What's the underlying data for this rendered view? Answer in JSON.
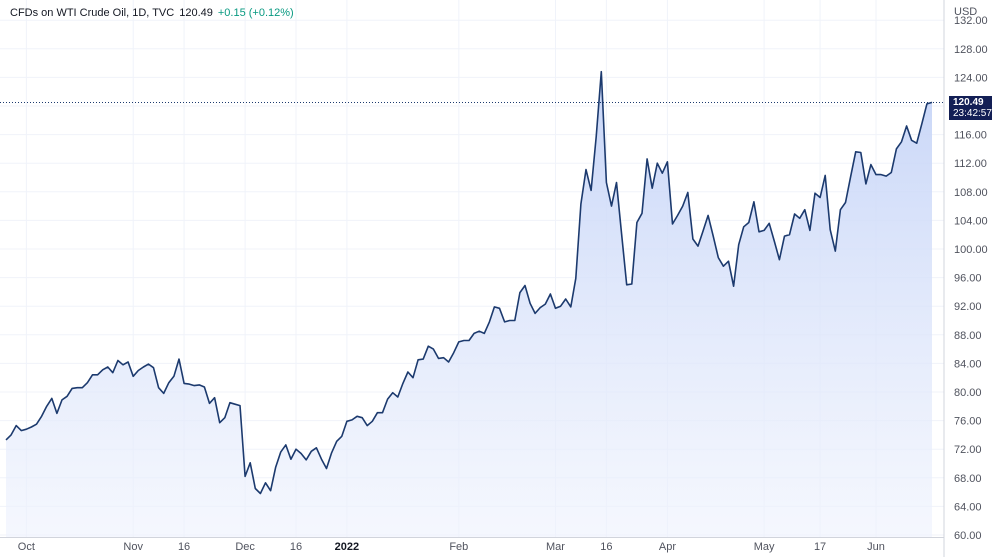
{
  "legend": {
    "symbol": "CFDs on WTI Crude Oil, 1D, TVC",
    "last": "120.49",
    "change": "+0.15 (+0.12%)"
  },
  "price_tag": {
    "price": "120.49",
    "countdown": "23:42:57"
  },
  "colors": {
    "line": "#1c3a6e",
    "fill_top": "#c4d3f7",
    "fill_bottom": "#eef2fd",
    "tag": "#131f55",
    "change": "#089981"
  },
  "chart_data": {
    "type": "area",
    "currency": "USD",
    "ylim": [
      60,
      133
    ],
    "yticks": [
      "60.00",
      "64.00",
      "68.00",
      "72.00",
      "76.00",
      "80.00",
      "84.00",
      "88.00",
      "92.00",
      "96.00",
      "100.00",
      "104.00",
      "108.00",
      "112.00",
      "116.00",
      "120.00",
      "124.00",
      "128.00",
      "132.00"
    ],
    "xticks": [
      {
        "label": "Oct",
        "index": 4,
        "bold": false
      },
      {
        "label": "Nov",
        "index": 25,
        "bold": false
      },
      {
        "label": "16",
        "index": 35,
        "bold": false
      },
      {
        "label": "Dec",
        "index": 47,
        "bold": false
      },
      {
        "label": "16",
        "index": 57,
        "bold": false
      },
      {
        "label": "2022",
        "index": 67,
        "bold": true
      },
      {
        "label": "Feb",
        "index": 89,
        "bold": false
      },
      {
        "label": "Mar",
        "index": 108,
        "bold": false
      },
      {
        "label": "16",
        "index": 118,
        "bold": false
      },
      {
        "label": "Apr",
        "index": 130,
        "bold": false
      },
      {
        "label": "May",
        "index": 149,
        "bold": false
      },
      {
        "label": "17",
        "index": 160,
        "bold": false
      },
      {
        "label": "Jun",
        "index": 171,
        "bold": false
      }
    ],
    "grid": true,
    "last_price_line": 120.49,
    "values": [
      73.3,
      74.0,
      75.3,
      74.6,
      74.8,
      75.1,
      75.5,
      76.6,
      78.0,
      79.1,
      77.0,
      78.9,
      79.4,
      80.5,
      80.6,
      80.6,
      81.3,
      82.4,
      82.4,
      83.1,
      83.5,
      82.7,
      84.4,
      83.8,
      84.2,
      82.2,
      83.0,
      83.5,
      83.9,
      83.4,
      80.6,
      79.8,
      81.3,
      82.2,
      84.6,
      81.2,
      81.1,
      80.9,
      81.0,
      80.7,
      78.4,
      79.2,
      75.7,
      76.4,
      78.5,
      78.3,
      78.1,
      68.2,
      70.1,
      66.5,
      65.8,
      67.3,
      66.2,
      69.5,
      71.6,
      72.6,
      70.6,
      72.0,
      71.4,
      70.5,
      71.7,
      72.2,
      70.6,
      69.3,
      71.5,
      73.1,
      73.8,
      75.9,
      76.1,
      76.6,
      76.4,
      75.3,
      75.9,
      77.1,
      77.1,
      79.0,
      79.9,
      79.3,
      81.2,
      82.8,
      82.0,
      84.5,
      84.6,
      86.4,
      86.0,
      84.7,
      84.8,
      84.2,
      85.5,
      87.0,
      87.2,
      87.2,
      88.2,
      88.5,
      88.2,
      89.8,
      91.9,
      91.7,
      89.8,
      90.0,
      90.0,
      93.9,
      94.9,
      92.4,
      91.0,
      91.8,
      92.3,
      93.7,
      91.7,
      92.0,
      93.0,
      91.9,
      95.9,
      106.3,
      111.1,
      108.2,
      115.7,
      124.8,
      109.3,
      106.0,
      109.3,
      102.1,
      95.0,
      95.1,
      103.7,
      105.0,
      112.6,
      108.5,
      112.0,
      110.6,
      112.2,
      103.5,
      104.7,
      106.0,
      107.9,
      101.4,
      100.4,
      102.5,
      104.7,
      101.8,
      98.8,
      97.6,
      98.3,
      94.8,
      100.6,
      103.1,
      103.7,
      106.6,
      102.4,
      102.6,
      103.6,
      101.1,
      98.5,
      101.8,
      102.0,
      104.9,
      104.3,
      105.5,
      102.6,
      107.8,
      107.2,
      110.3,
      102.7,
      99.7,
      105.5,
      106.5,
      110.1,
      113.6,
      113.5,
      109.1,
      111.8,
      110.4,
      110.4,
      110.2,
      110.7,
      114.0,
      115.0,
      117.2,
      115.2,
      114.8,
      117.5,
      120.3,
      120.5
    ]
  }
}
